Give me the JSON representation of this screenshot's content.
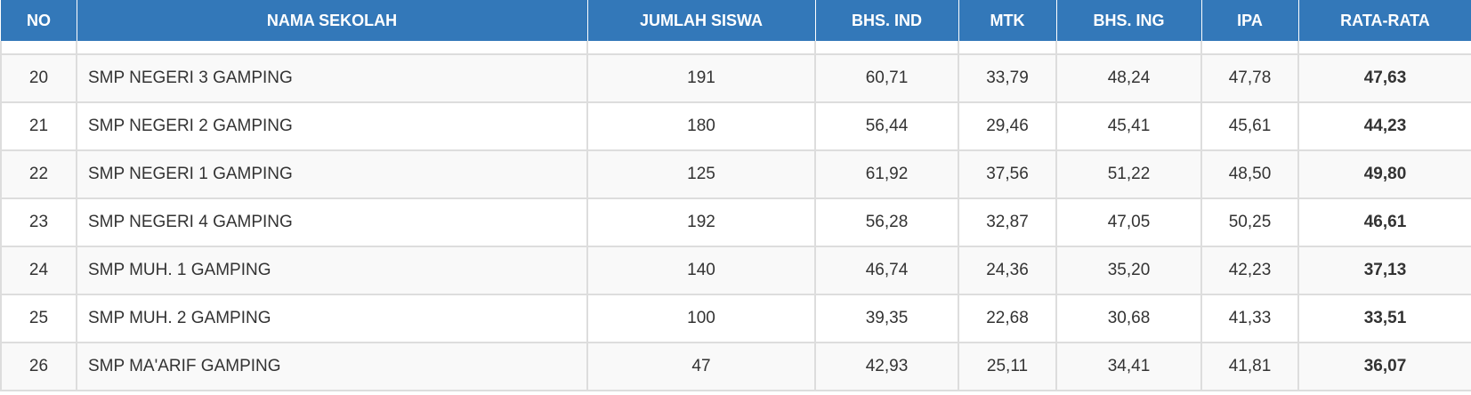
{
  "table": {
    "headers": [
      "NO",
      "NAMA SEKOLAH",
      "JUMLAH SISWA",
      "BHS. IND",
      "MTK",
      "BHS. ING",
      "IPA",
      "RATA-RATA"
    ],
    "rows": [
      {
        "no": "20",
        "name": "SMP NEGERI 3 GAMPING",
        "siswa": "191",
        "ind": "60,71",
        "mtk": "33,79",
        "ing": "48,24",
        "ipa": "47,78",
        "avg": "47,63"
      },
      {
        "no": "21",
        "name": "SMP NEGERI 2 GAMPING",
        "siswa": "180",
        "ind": "56,44",
        "mtk": "29,46",
        "ing": "45,41",
        "ipa": "45,61",
        "avg": "44,23"
      },
      {
        "no": "22",
        "name": "SMP NEGERI 1 GAMPING",
        "siswa": "125",
        "ind": "61,92",
        "mtk": "37,56",
        "ing": "51,22",
        "ipa": "48,50",
        "avg": "49,80"
      },
      {
        "no": "23",
        "name": "SMP NEGERI 4 GAMPING",
        "siswa": "192",
        "ind": "56,28",
        "mtk": "32,87",
        "ing": "47,05",
        "ipa": "50,25",
        "avg": "46,61"
      },
      {
        "no": "24",
        "name": "SMP MUH. 1 GAMPING",
        "siswa": "140",
        "ind": "46,74",
        "mtk": "24,36",
        "ing": "35,20",
        "ipa": "42,23",
        "avg": "37,13"
      },
      {
        "no": "25",
        "name": "SMP MUH. 2 GAMPING",
        "siswa": "100",
        "ind": "39,35",
        "mtk": "22,68",
        "ing": "30,68",
        "ipa": "41,33",
        "avg": "33,51"
      },
      {
        "no": "26",
        "name": "SMP MA'ARIF GAMPING",
        "siswa": "47",
        "ind": "42,93",
        "mtk": "25,11",
        "ing": "34,41",
        "ipa": "41,81",
        "avg": "36,07"
      }
    ]
  },
  "colors": {
    "header_bg": "#3378b9",
    "header_text": "#ffffff",
    "border": "#dddddd",
    "row_alt": "#f9f9f9"
  }
}
